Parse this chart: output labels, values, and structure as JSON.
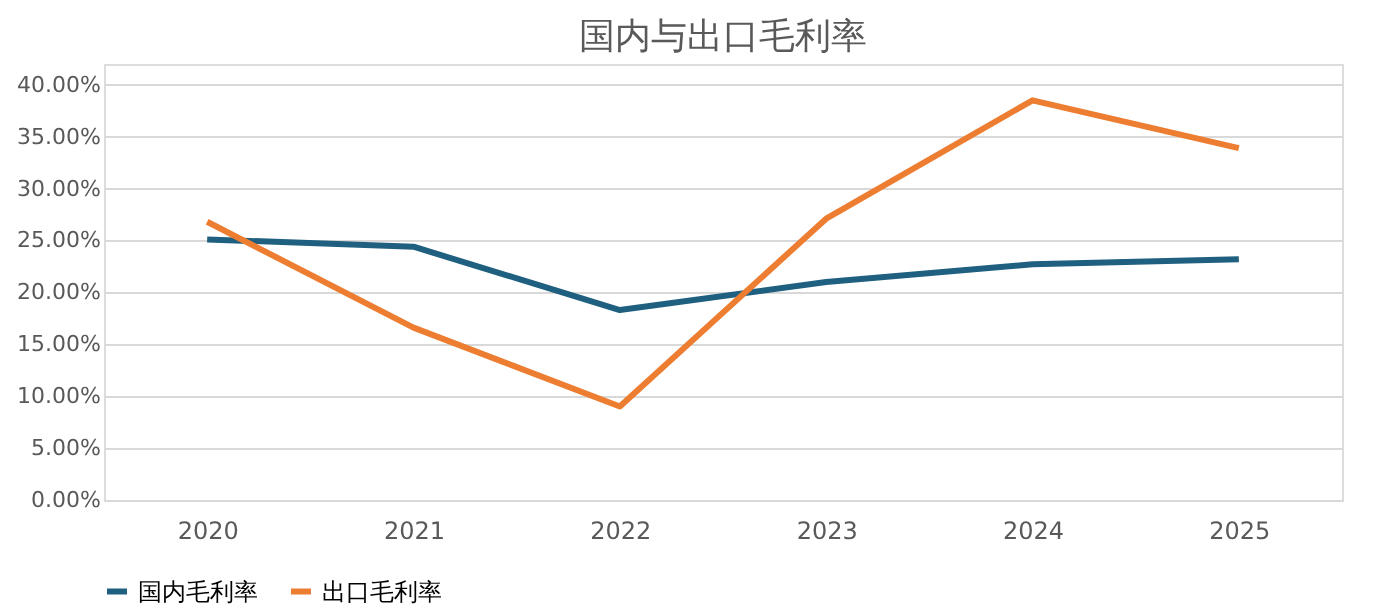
{
  "chart_data": {
    "type": "line",
    "title": "国内与出口毛利率",
    "categories": [
      "2020",
      "2021",
      "2022",
      "2023",
      "2024",
      "2025"
    ],
    "series": [
      {
        "name": "国内毛利率",
        "color": "#1f5f7f",
        "values": [
          25.1,
          24.4,
          18.3,
          21.0,
          22.7,
          23.2
        ]
      },
      {
        "name": "出口毛利率",
        "color": "#ed7d31",
        "values": [
          26.8,
          16.6,
          9.0,
          27.1,
          38.5,
          33.9
        ]
      }
    ],
    "ylim": [
      0,
      42
    ],
    "yticks": [
      {
        "value": 0,
        "label": "0.00%"
      },
      {
        "value": 5,
        "label": "5.00%"
      },
      {
        "value": 10,
        "label": "10.00%"
      },
      {
        "value": 15,
        "label": "15.00%"
      },
      {
        "value": 20,
        "label": "20.00%"
      },
      {
        "value": 25,
        "label": "25.00%"
      },
      {
        "value": 30,
        "label": "30.00%"
      },
      {
        "value": 35,
        "label": "35.00%"
      },
      {
        "value": 40,
        "label": "40.00%"
      }
    ],
    "grid": "y",
    "legend": "bottom",
    "marker": "none",
    "line_style": "solid"
  }
}
